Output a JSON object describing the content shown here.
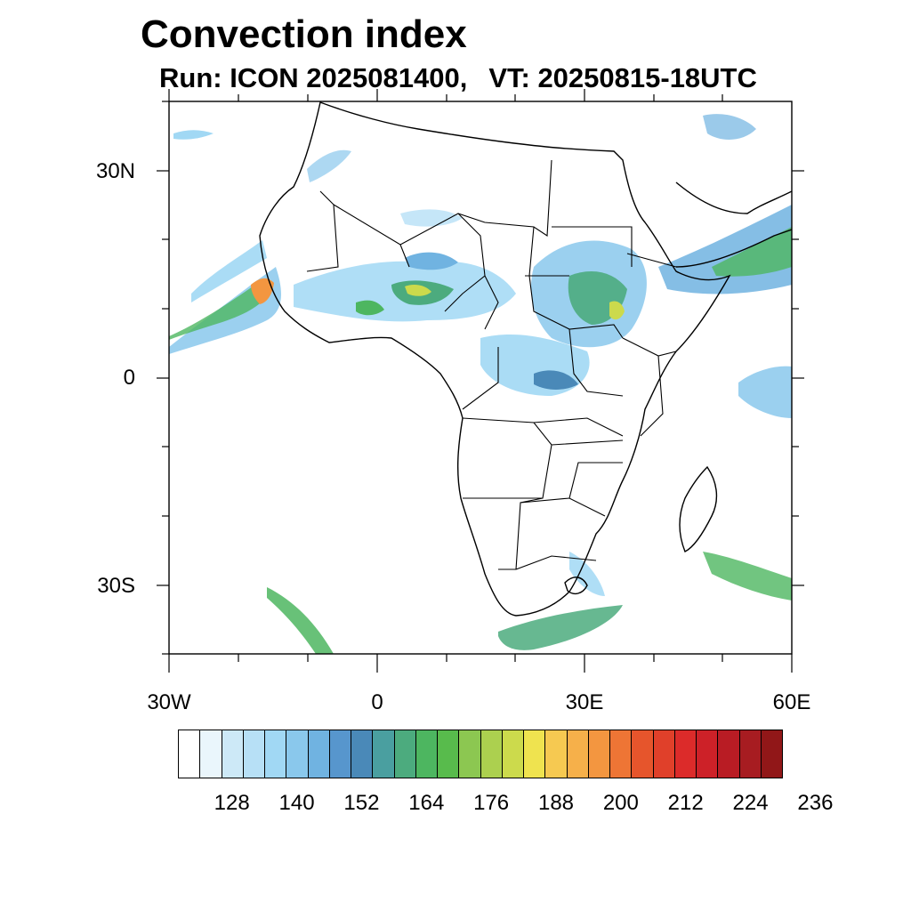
{
  "title": "Convection index",
  "subtitle": {
    "run": "Run: ICON 2025081400,",
    "vt": "VT: 20250815-18UTC"
  },
  "map": {
    "lon_range": [
      -30,
      60
    ],
    "lat_range": [
      -40,
      40
    ],
    "lat_labels": [
      {
        "value": 30,
        "label": "30N"
      },
      {
        "value": 0,
        "label": "0"
      },
      {
        "value": -30,
        "label": "30S"
      }
    ],
    "lon_labels": [
      {
        "value": -30,
        "label": "30W"
      },
      {
        "value": 0,
        "label": "0"
      },
      {
        "value": 30,
        "label": "30E"
      },
      {
        "value": 60,
        "label": "60E"
      }
    ]
  },
  "colorbar": {
    "colors": [
      "#ffffff",
      "#eaf6fc",
      "#cde9f7",
      "#b7e0f6",
      "#a1d8f4",
      "#8ac8ec",
      "#70b3e1",
      "#5796cd",
      "#4a89b8",
      "#4a9fa0",
      "#4cab7e",
      "#4db660",
      "#58bb4c",
      "#8cc751",
      "#acd04f",
      "#ccda4c",
      "#efe34f",
      "#f6c951",
      "#f6b04a",
      "#f39640",
      "#ee7535",
      "#e6552c",
      "#e0402a",
      "#dc2b2a",
      "#cd2128",
      "#b91c24",
      "#a71c21",
      "#911718"
    ],
    "tick_labels": [
      "128",
      "140",
      "152",
      "164",
      "176",
      "188",
      "200",
      "212",
      "224",
      "236"
    ]
  }
}
